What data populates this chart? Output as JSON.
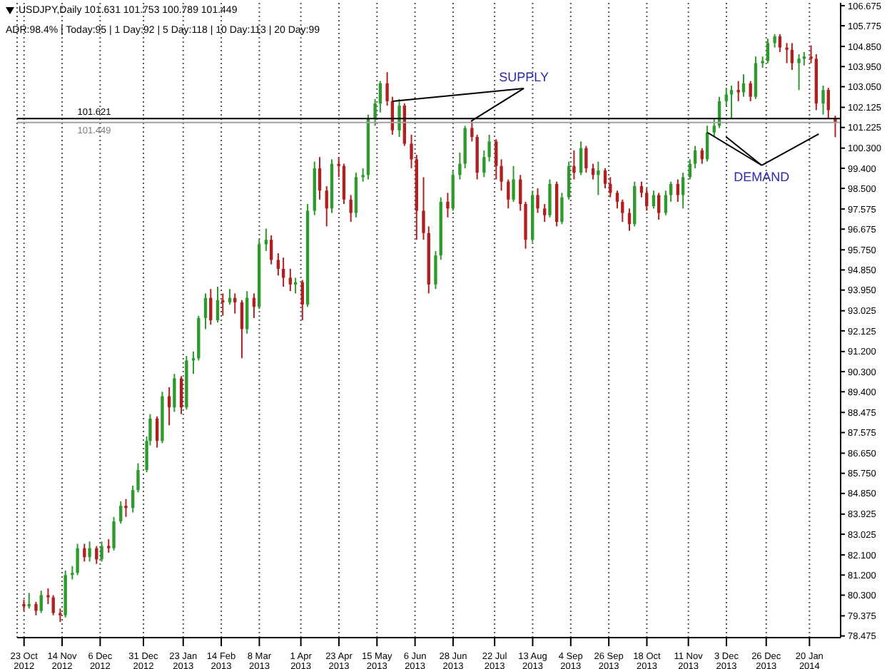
{
  "chart_data": {
    "type": "candlestick",
    "title": "USDJPY,Daily 101.631 101.753 100.789 101.449",
    "subtitle": "ADR:98.4%  |  Today:95  |  1 Day:92  |  5 Day:118  |  10 Day:113  |  20 Day:99",
    "x": [
      "2012-10-23",
      "2012-10-26",
      "2012-10-30",
      "2012-11-02",
      "2012-11-06",
      "2012-11-09",
      "2012-11-13",
      "2012-11-16",
      "2012-11-20",
      "2012-11-23",
      "2012-11-27",
      "2012-11-30",
      "2012-12-04",
      "2012-12-07",
      "2012-12-11",
      "2012-12-14",
      "2012-12-18",
      "2012-12-21",
      "2012-12-25",
      "2012-12-28",
      "2013-01-02",
      "2013-01-04",
      "2013-01-08",
      "2013-01-11",
      "2013-01-15",
      "2013-01-18",
      "2013-01-22",
      "2013-01-25",
      "2013-01-29",
      "2013-02-01",
      "2013-02-05",
      "2013-02-08",
      "2013-02-12",
      "2013-02-15",
      "2013-02-19",
      "2013-02-22",
      "2013-02-26",
      "2013-03-01",
      "2013-03-05",
      "2013-03-08",
      "2013-03-12",
      "2013-03-15",
      "2013-03-19",
      "2013-03-22",
      "2013-03-26",
      "2013-03-29",
      "2013-04-02",
      "2013-04-05",
      "2013-04-09",
      "2013-04-12",
      "2013-04-16",
      "2013-04-19",
      "2013-04-23",
      "2013-04-26",
      "2013-04-30",
      "2013-05-03",
      "2013-05-07",
      "2013-05-10",
      "2013-05-14",
      "2013-05-17",
      "2013-05-21",
      "2013-05-24",
      "2013-05-28",
      "2013-05-31",
      "2013-06-04",
      "2013-06-07",
      "2013-06-11",
      "2013-06-14",
      "2013-06-18",
      "2013-06-21",
      "2013-06-25",
      "2013-06-28",
      "2013-07-02",
      "2013-07-05",
      "2013-07-09",
      "2013-07-12",
      "2013-07-16",
      "2013-07-19",
      "2013-07-23",
      "2013-07-26",
      "2013-07-30",
      "2013-08-02",
      "2013-08-06",
      "2013-08-09",
      "2013-08-13",
      "2013-08-16",
      "2013-08-20",
      "2013-08-23",
      "2013-08-27",
      "2013-08-30",
      "2013-09-03",
      "2013-09-06",
      "2013-09-10",
      "2013-09-13",
      "2013-09-17",
      "2013-09-20",
      "2013-09-24",
      "2013-09-27",
      "2013-10-01",
      "2013-10-04",
      "2013-10-08",
      "2013-10-11",
      "2013-10-15",
      "2013-10-18",
      "2013-10-22",
      "2013-10-25",
      "2013-10-29",
      "2013-11-01",
      "2013-11-05",
      "2013-11-08",
      "2013-11-12",
      "2013-11-15",
      "2013-11-19",
      "2013-11-22",
      "2013-11-26",
      "2013-11-29",
      "2013-12-03",
      "2013-12-06",
      "2013-12-10",
      "2013-12-13",
      "2013-12-17",
      "2013-12-20",
      "2013-12-24",
      "2013-12-27",
      "2013-12-31",
      "2014-01-03",
      "2014-01-07",
      "2014-01-10",
      "2014-01-14",
      "2014-01-17",
      "2014-01-21",
      "2014-01-24",
      "2014-01-28",
      "2014-01-31",
      "2014-02-04"
    ],
    "ohlc": [
      [
        79.9,
        80.1,
        79.6,
        79.8
      ],
      [
        79.8,
        80.4,
        79.7,
        79.9
      ],
      [
        79.9,
        80.0,
        79.4,
        79.6
      ],
      [
        79.6,
        80.5,
        79.5,
        80.3
      ],
      [
        80.3,
        80.6,
        79.9,
        80.2
      ],
      [
        80.2,
        80.3,
        79.4,
        79.5
      ],
      [
        79.5,
        79.7,
        79.1,
        79.4
      ],
      [
        79.4,
        81.4,
        79.3,
        81.2
      ],
      [
        81.2,
        81.6,
        81.0,
        81.3
      ],
      [
        81.3,
        82.6,
        81.2,
        82.4
      ],
      [
        82.4,
        82.6,
        81.8,
        82.0
      ],
      [
        82.0,
        82.7,
        81.8,
        82.4
      ],
      [
        82.4,
        82.5,
        81.7,
        81.9
      ],
      [
        81.9,
        82.7,
        81.8,
        82.5
      ],
      [
        82.5,
        82.8,
        82.2,
        82.4
      ],
      [
        82.4,
        83.8,
        82.3,
        83.6
      ],
      [
        83.6,
        84.5,
        83.5,
        84.3
      ],
      [
        84.3,
        84.6,
        83.8,
        84.2
      ],
      [
        84.2,
        85.2,
        84.0,
        85.0
      ],
      [
        85.0,
        86.2,
        84.9,
        85.9
      ],
      [
        85.9,
        87.4,
        85.8,
        87.2
      ],
      [
        87.2,
        88.4,
        87.0,
        88.2
      ],
      [
        88.2,
        88.3,
        86.9,
        87.2
      ],
      [
        87.2,
        89.4,
        87.1,
        89.2
      ],
      [
        89.2,
        89.6,
        87.9,
        88.7
      ],
      [
        88.7,
        90.2,
        88.5,
        90.0
      ],
      [
        90.0,
        90.1,
        88.4,
        88.7
      ],
      [
        88.7,
        91.0,
        88.6,
        90.8
      ],
      [
        90.8,
        91.2,
        90.2,
        90.9
      ],
      [
        90.9,
        92.8,
        90.8,
        92.7
      ],
      [
        92.7,
        93.8,
        92.2,
        93.6
      ],
      [
        93.6,
        94.0,
        92.4,
        92.6
      ],
      [
        92.6,
        94.1,
        92.5,
        93.5
      ],
      [
        93.5,
        93.8,
        92.8,
        93.4
      ],
      [
        93.4,
        94.0,
        93.3,
        93.6
      ],
      [
        93.6,
        93.8,
        92.9,
        93.4
      ],
      [
        93.4,
        93.5,
        90.9,
        92.2
      ],
      [
        92.2,
        93.9,
        92.0,
        93.6
      ],
      [
        93.6,
        93.8,
        92.7,
        93.2
      ],
      [
        93.2,
        96.2,
        93.1,
        96.0
      ],
      [
        96.0,
        96.7,
        95.7,
        96.2
      ],
      [
        96.2,
        96.4,
        95.1,
        95.3
      ],
      [
        95.3,
        95.6,
        94.6,
        94.9
      ],
      [
        94.9,
        95.4,
        94.1,
        94.5
      ],
      [
        94.5,
        94.9,
        93.9,
        94.2
      ],
      [
        94.2,
        94.5,
        93.8,
        94.3
      ],
      [
        94.3,
        94.4,
        92.6,
        93.3
      ],
      [
        93.3,
        97.8,
        93.2,
        97.5
      ],
      [
        97.5,
        99.7,
        97.3,
        99.4
      ],
      [
        99.4,
        99.9,
        98.0,
        98.4
      ],
      [
        98.4,
        98.6,
        96.8,
        97.6
      ],
      [
        97.6,
        99.8,
        97.4,
        99.6
      ],
      [
        99.6,
        99.9,
        99.0,
        99.5
      ],
      [
        99.5,
        99.6,
        97.8,
        98.0
      ],
      [
        98.0,
        98.2,
        97.0,
        97.4
      ],
      [
        97.4,
        99.2,
        97.2,
        99.0
      ],
      [
        99.0,
        99.4,
        98.8,
        99.1
      ],
      [
        99.1,
        101.8,
        98.9,
        101.6
      ],
      [
        101.6,
        102.5,
        101.3,
        102.3
      ],
      [
        102.3,
        103.3,
        101.9,
        103.2
      ],
      [
        103.2,
        103.7,
        102.2,
        102.4
      ],
      [
        102.4,
        102.6,
        100.9,
        101.1
      ],
      [
        101.1,
        102.5,
        100.8,
        102.2
      ],
      [
        102.2,
        102.3,
        100.4,
        100.5
      ],
      [
        100.5,
        100.9,
        99.4,
        99.8
      ],
      [
        99.8,
        100.0,
        96.2,
        97.5
      ],
      [
        97.5,
        99.0,
        96.2,
        96.5
      ],
      [
        96.5,
        96.8,
        93.8,
        94.2
      ],
      [
        94.2,
        95.7,
        94.0,
        95.5
      ],
      [
        95.5,
        98.1,
        95.3,
        97.9
      ],
      [
        97.9,
        98.3,
        97.2,
        97.6
      ],
      [
        97.6,
        99.3,
        97.5,
        99.1
      ],
      [
        99.1,
        100.1,
        98.9,
        99.6
      ],
      [
        99.6,
        101.3,
        99.4,
        101.2
      ],
      [
        101.2,
        101.5,
        100.6,
        100.8
      ],
      [
        100.8,
        100.9,
        98.9,
        99.2
      ],
      [
        99.2,
        100.2,
        99.0,
        99.9
      ],
      [
        99.9,
        100.9,
        99.7,
        100.6
      ],
      [
        100.6,
        100.7,
        98.9,
        99.5
      ],
      [
        99.5,
        99.8,
        98.4,
        98.8
      ],
      [
        98.8,
        98.9,
        97.6,
        98.0
      ],
      [
        98.0,
        99.5,
        97.9,
        98.9
      ],
      [
        98.9,
        99.1,
        97.5,
        97.8
      ],
      [
        97.8,
        97.9,
        95.8,
        96.2
      ],
      [
        96.2,
        98.4,
        96.1,
        98.2
      ],
      [
        98.2,
        98.5,
        97.4,
        97.6
      ],
      [
        97.6,
        97.8,
        97.0,
        97.3
      ],
      [
        97.3,
        98.9,
        97.2,
        98.7
      ],
      [
        98.7,
        98.8,
        96.8,
        97.0
      ],
      [
        97.0,
        98.3,
        96.9,
        98.1
      ],
      [
        98.1,
        99.7,
        98.0,
        99.5
      ],
      [
        99.5,
        100.2,
        98.9,
        99.2
      ],
      [
        99.2,
        100.6,
        99.1,
        100.3
      ],
      [
        100.3,
        100.4,
        99.2,
        99.4
      ],
      [
        99.4,
        99.6,
        98.9,
        99.1
      ],
      [
        99.1,
        99.7,
        98.2,
        99.3
      ],
      [
        99.3,
        99.4,
        98.5,
        98.7
      ],
      [
        98.7,
        99.0,
        98.1,
        98.3
      ],
      [
        98.3,
        98.4,
        97.6,
        97.9
      ],
      [
        97.9,
        98.0,
        97.0,
        97.4
      ],
      [
        97.4,
        97.6,
        96.6,
        96.9
      ],
      [
        96.9,
        98.8,
        96.8,
        98.6
      ],
      [
        98.6,
        98.8,
        98.1,
        98.3
      ],
      [
        98.3,
        98.5,
        97.5,
        97.7
      ],
      [
        97.7,
        98.4,
        97.6,
        98.2
      ],
      [
        98.2,
        98.3,
        97.1,
        97.4
      ],
      [
        97.4,
        98.4,
        97.3,
        98.2
      ],
      [
        98.2,
        98.8,
        97.9,
        98.7
      ],
      [
        98.7,
        98.9,
        97.9,
        98.2
      ],
      [
        98.2,
        99.2,
        97.6,
        99.0
      ],
      [
        99.0,
        99.8,
        98.9,
        99.6
      ],
      [
        99.6,
        100.4,
        99.4,
        100.2
      ],
      [
        100.2,
        100.3,
        99.6,
        99.8
      ],
      [
        99.8,
        101.3,
        99.7,
        101.0
      ],
      [
        101.0,
        101.6,
        100.8,
        101.3
      ],
      [
        101.3,
        102.6,
        101.2,
        102.4
      ],
      [
        102.4,
        103.0,
        102.2,
        102.7
      ],
      [
        102.7,
        103.1,
        101.6,
        102.9
      ],
      [
        102.9,
        103.3,
        102.4,
        102.8
      ],
      [
        102.8,
        103.6,
        102.6,
        103.2
      ],
      [
        103.2,
        103.3,
        102.4,
        102.6
      ],
      [
        102.6,
        104.4,
        102.5,
        104.1
      ],
      [
        104.1,
        104.4,
        103.9,
        104.2
      ],
      [
        104.2,
        105.2,
        104.1,
        105.0
      ],
      [
        105.0,
        105.4,
        104.8,
        105.3
      ],
      [
        105.3,
        105.4,
        104.6,
        104.8
      ],
      [
        104.8,
        105.0,
        104.1,
        104.7
      ],
      [
        104.7,
        105.0,
        103.8,
        104.1
      ],
      [
        104.1,
        104.5,
        102.9,
        104.3
      ],
      [
        104.3,
        104.6,
        104.0,
        104.4
      ],
      [
        104.4,
        104.9,
        104.1,
        104.3
      ],
      [
        104.3,
        104.5,
        102.0,
        102.3
      ],
      [
        102.3,
        103.1,
        101.8,
        102.9
      ],
      [
        102.9,
        103.0,
        101.6,
        102.0
      ],
      [
        101.631,
        101.753,
        100.789,
        101.449
      ]
    ],
    "colors": [
      "#b02020",
      "#2e9a2e",
      "#b02020",
      "#2e9a2e",
      "#b02020",
      "#b02020",
      "#b02020",
      "#2e9a2e",
      "#2e9a2e",
      "#2e9a2e",
      "#b02020",
      "#2e9a2e",
      "#b02020",
      "#2e9a2e",
      "#b02020",
      "#2e9a2e",
      "#2e9a2e",
      "#b02020",
      "#2e9a2e",
      "#2e9a2e",
      "#2e9a2e",
      "#2e9a2e",
      "#b02020",
      "#2e9a2e",
      "#b02020",
      "#2e9a2e",
      "#b02020",
      "#2e9a2e",
      "#2e9a2e",
      "#2e9a2e",
      "#2e9a2e",
      "#b02020",
      "#2e9a2e",
      "#b02020",
      "#2e9a2e",
      "#b02020",
      "#b02020",
      "#2e9a2e",
      "#b02020",
      "#2e9a2e",
      "#2e9a2e",
      "#b02020",
      "#b02020",
      "#b02020",
      "#b02020",
      "#2e9a2e",
      "#b02020",
      "#2e9a2e",
      "#2e9a2e",
      "#b02020",
      "#b02020",
      "#2e9a2e",
      "#b02020",
      "#b02020",
      "#b02020",
      "#2e9a2e",
      "#2e9a2e",
      "#2e9a2e",
      "#2e9a2e",
      "#2e9a2e",
      "#b02020",
      "#b02020",
      "#2e9a2e",
      "#b02020",
      "#b02020",
      "#b02020",
      "#b02020",
      "#b02020",
      "#2e9a2e",
      "#2e9a2e",
      "#b02020",
      "#2e9a2e",
      "#2e9a2e",
      "#2e9a2e",
      "#b02020",
      "#b02020",
      "#2e9a2e",
      "#2e9a2e",
      "#b02020",
      "#b02020",
      "#b02020",
      "#2e9a2e",
      "#b02020",
      "#b02020",
      "#2e9a2e",
      "#b02020",
      "#b02020",
      "#2e9a2e",
      "#b02020",
      "#2e9a2e",
      "#2e9a2e",
      "#b02020",
      "#2e9a2e",
      "#b02020",
      "#b02020",
      "#2e9a2e",
      "#b02020",
      "#b02020",
      "#b02020",
      "#b02020",
      "#b02020",
      "#2e9a2e",
      "#b02020",
      "#b02020",
      "#2e9a2e",
      "#b02020",
      "#2e9a2e",
      "#2e9a2e",
      "#b02020",
      "#2e9a2e",
      "#2e9a2e",
      "#2e9a2e",
      "#b02020",
      "#2e9a2e",
      "#2e9a2e",
      "#2e9a2e",
      "#2e9a2e",
      "#2e9a2e",
      "#b02020",
      "#2e9a2e",
      "#b02020",
      "#2e9a2e",
      "#2e9a2e",
      "#2e9a2e",
      "#2e9a2e",
      "#b02020",
      "#b02020",
      "#b02020",
      "#2e9a2e",
      "#2e9a2e",
      "#b02020",
      "#b02020",
      "#2e9a2e",
      "#b02020",
      "#b02020"
    ],
    "xlim": [
      "2012-10-19",
      "2014-02-07"
    ],
    "xticks": [
      {
        "value": "2012-10-23",
        "label": "23 Oct 2012"
      },
      {
        "value": "2012-11-14",
        "label": "14 Nov 2012"
      },
      {
        "value": "2012-12-06",
        "label": "6 Dec 2012"
      },
      {
        "value": "2012-12-31",
        "label": "31 Dec 2012"
      },
      {
        "value": "2013-01-23",
        "label": "23 Jan 2013"
      },
      {
        "value": "2013-02-14",
        "label": "14 Feb 2013"
      },
      {
        "value": "2013-03-08",
        "label": "8 Mar 2013"
      },
      {
        "value": "2013-04-01",
        "label": "1 Apr 2013"
      },
      {
        "value": "2013-04-23",
        "label": "23 Apr 2013"
      },
      {
        "value": "2013-05-15",
        "label": "15 May 2013"
      },
      {
        "value": "2013-06-06",
        "label": "6 Jun 2013"
      },
      {
        "value": "2013-06-28",
        "label": "28 Jun 2013"
      },
      {
        "value": "2013-07-22",
        "label": "22 Jul 2013"
      },
      {
        "value": "2013-08-13",
        "label": "13 Aug 2013"
      },
      {
        "value": "2013-09-04",
        "label": "4 Sep 2013"
      },
      {
        "value": "2013-09-26",
        "label": "26 Sep 2013"
      },
      {
        "value": "2013-10-18",
        "label": "18 Oct 2013"
      },
      {
        "value": "2013-11-11",
        "label": "11 Nov 2013"
      },
      {
        "value": "2013-12-03",
        "label": "3 Dec 2013"
      },
      {
        "value": "2013-12-26",
        "label": "26 Dec 2013"
      },
      {
        "value": "2014-01-20",
        "label": "20 Jan 2014"
      }
    ],
    "ylim": [
      78.4,
      106.8
    ],
    "yticks": [
      106.675,
      105.775,
      {
        "value": 104.85,
        "label": "104.850"
      },
      {
        "value": 103.95,
        "label": "103.950"
      },
      {
        "value": 103.05,
        "label": "103.050"
      },
      102.125,
      101.225,
      {
        "value": 100.3,
        "label": "100.300"
      },
      {
        "value": 99.4,
        "label": "99.400"
      },
      {
        "value": 98.5,
        "label": "98.500"
      },
      97.575,
      96.675,
      {
        "value": 95.75,
        "label": "95.750"
      },
      {
        "value": 94.85,
        "label": "94.850"
      },
      {
        "value": 93.95,
        "label": "93.950"
      },
      93.025,
      92.125,
      {
        "value": 91.2,
        "label": "91.200"
      },
      {
        "value": 90.3,
        "label": "90.300"
      },
      {
        "value": 89.4,
        "label": "89.400"
      },
      88.475,
      87.575,
      {
        "value": 86.65,
        "label": "86.650"
      },
      {
        "value": 85.75,
        "label": "85.750"
      },
      {
        "value": 84.85,
        "label": "84.850"
      },
      83.925,
      83.025,
      {
        "value": 82.1,
        "label": "82.100"
      },
      {
        "value": 81.2,
        "label": "81.200"
      },
      {
        "value": 80.3,
        "label": "80.300"
      },
      79.375,
      78.475
    ],
    "ref_lines": [
      {
        "axis": "y",
        "value": 101.621,
        "label": "101.621",
        "color": "#000000"
      },
      {
        "axis": "y",
        "value": 101.449,
        "label": "101.449",
        "color": "#a0a0a0"
      }
    ],
    "annotations": [
      {
        "text": "SUPPLY",
        "x": "2013-05-24",
        "y": 102.4
      },
      {
        "text": "DEMAND",
        "x": "2013-11-22",
        "y": 101.0
      }
    ],
    "grid": "x",
    "legend": false
  }
}
